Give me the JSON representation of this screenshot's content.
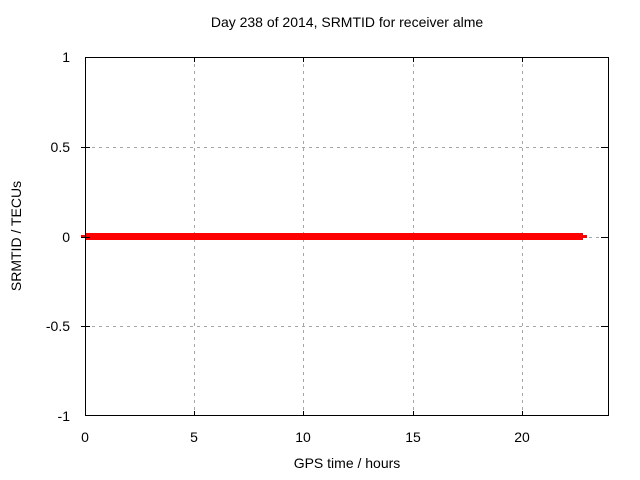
{
  "window": {
    "background_color": "#ffffff",
    "text_color": "#000000"
  },
  "chart_data": {
    "type": "line",
    "title": "Day 238 of 2014, SRMTID for receiver alme",
    "xlabel": "GPS time / hours",
    "ylabel": "SRMTID / TECUs",
    "xlim": [
      0,
      24
    ],
    "ylim": [
      -1,
      1
    ],
    "x_ticks": [
      {
        "value": 0,
        "label": "0"
      },
      {
        "value": 5,
        "label": "5"
      },
      {
        "value": 10,
        "label": "10"
      },
      {
        "value": 15,
        "label": "15"
      },
      {
        "value": 20,
        "label": "20"
      }
    ],
    "y_ticks": [
      {
        "value": -1,
        "label": "-1"
      },
      {
        "value": -0.5,
        "label": "-0.5"
      },
      {
        "value": 0,
        "label": "0"
      },
      {
        "value": 0.5,
        "label": "0.5"
      },
      {
        "value": 1,
        "label": "1"
      }
    ],
    "grid": true,
    "grid_color": "#a6a6a6",
    "border_color": "#000000",
    "legend": "none",
    "series": [
      {
        "name": "SRMTID",
        "color": "#ff0000",
        "x": [
          0,
          22.8
        ],
        "y": [
          0,
          0
        ],
        "description": "constant zero-value thick line from 0 h to about 22.8 h"
      }
    ]
  }
}
